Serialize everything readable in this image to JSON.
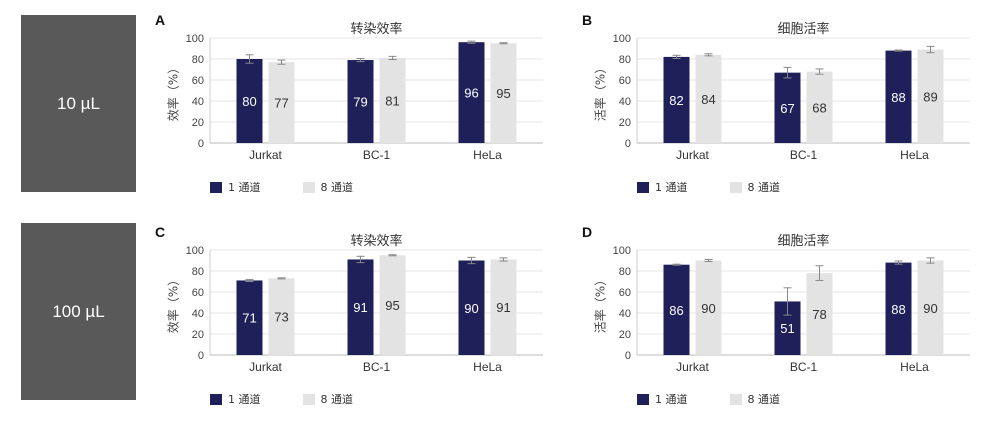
{
  "rows": [
    {
      "label": "10 µL"
    },
    {
      "label": "100 µL"
    }
  ],
  "colors": {
    "ch1": "#1f1f5a",
    "ch8": "#e3e3e3",
    "grid": "#e6e6e6",
    "row_bg": "#595959"
  },
  "legend": {
    "ch1": "1 通道",
    "ch8": "8 通道"
  },
  "chart_data": [
    {
      "panel": "A",
      "type": "bar",
      "title": "转染效率",
      "ylabel": "效率（%）",
      "ylim": [
        0,
        100
      ],
      "yticks": [
        0,
        20,
        40,
        60,
        80,
        100
      ],
      "categories": [
        "Jurkat",
        "BC-1",
        "HeLa"
      ],
      "series": [
        {
          "name": "1 通道",
          "values": [
            80,
            79,
            96
          ],
          "errors": [
            4,
            1.5,
            1
          ]
        },
        {
          "name": "8 通道",
          "values": [
            77,
            81,
            95
          ],
          "errors": [
            2,
            1.5,
            0.5
          ]
        }
      ]
    },
    {
      "panel": "B",
      "type": "bar",
      "title": "细胞活率",
      "ylabel": "活率（%）",
      "ylim": [
        0,
        100
      ],
      "yticks": [
        0,
        20,
        40,
        60,
        80,
        100
      ],
      "categories": [
        "Jurkat",
        "BC-1",
        "HeLa"
      ],
      "series": [
        {
          "name": "1 通道",
          "values": [
            82,
            67,
            88
          ],
          "errors": [
            1.5,
            5,
            0.5
          ]
        },
        {
          "name": "8 通道",
          "values": [
            84,
            68,
            89
          ],
          "errors": [
            1,
            2.5,
            3
          ]
        }
      ]
    },
    {
      "panel": "C",
      "type": "bar",
      "title": "转染效率",
      "ylabel": "效率（%）",
      "ylim": [
        0,
        100
      ],
      "yticks": [
        0,
        20,
        40,
        60,
        80,
        100
      ],
      "categories": [
        "Jurkat",
        "BC-1",
        "HeLa"
      ],
      "series": [
        {
          "name": "1 通道",
          "values": [
            71,
            91,
            90
          ],
          "errors": [
            1,
            3,
            3
          ]
        },
        {
          "name": "8 通道",
          "values": [
            73,
            95,
            91
          ],
          "errors": [
            0.5,
            0.5,
            1.5
          ]
        }
      ]
    },
    {
      "panel": "D",
      "type": "bar",
      "title": "细胞活率",
      "ylabel": "活率（%）",
      "ylim": [
        0,
        100
      ],
      "yticks": [
        0,
        20,
        40,
        60,
        80,
        100
      ],
      "categories": [
        "Jurkat",
        "BC-1",
        "HeLa"
      ],
      "series": [
        {
          "name": "1 通道",
          "values": [
            86,
            51,
            88
          ],
          "errors": [
            0.5,
            13,
            1.5
          ]
        },
        {
          "name": "8 通道",
          "values": [
            90,
            78,
            90
          ],
          "errors": [
            1,
            7,
            2.5
          ]
        }
      ]
    }
  ]
}
